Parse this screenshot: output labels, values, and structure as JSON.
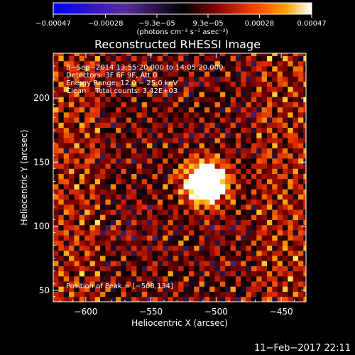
{
  "chart_data": {
    "type": "heatmap",
    "title": "Reconstructed RHESSI Image",
    "xlabel": "Heliocentric X (arcsec)",
    "ylabel": "Heliocentric Y (arcsec)",
    "xlim": [
      -625,
      -431
    ],
    "ylim": [
      41,
      235
    ],
    "x_ticks": [
      -600,
      -550,
      -500,
      -450
    ],
    "y_ticks": [
      50,
      100,
      150,
      200
    ],
    "x_tick_labels": [
      "−600",
      "−550",
      "−500",
      "−450"
    ],
    "y_tick_labels": [
      "50",
      "100",
      "150",
      "200"
    ],
    "colorbar": {
      "range": [
        -0.00047,
        0.00047
      ],
      "tick_labels": [
        "−0.00047",
        "−0.00028",
        "−9.3e−05",
        "9.3e−05",
        "0.00028",
        "0.00047"
      ],
      "unit_label": "(photons cm⁻² s⁻¹ asec⁻²)"
    },
    "annotations": [
      " 8−Sep−2014 13:55:20.000 to 14:05:20.000",
      "Detectors: 3F 6F 9F, Att 0",
      "Energy Range: 12.0 − 25.0 keV",
      "Clean    Total counts: 3.42E+03"
    ],
    "peak_label": "Position of Peak = [−508,134]",
    "peak": [
      -508,
      134
    ],
    "source_peak_value": 0.00047,
    "footer": "11−Feb−2017 22:11"
  }
}
